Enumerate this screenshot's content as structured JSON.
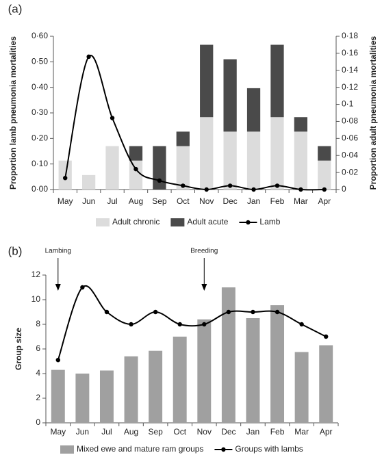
{
  "chart_data": [
    {
      "type": "bar",
      "panel_label": "(a)",
      "y_label": "Proportion lamb pneumonia mortalities",
      "y2_label": "Proportion adult pneumonia mortalities",
      "categories": [
        "May",
        "Jun",
        "Jul",
        "Aug",
        "Sep",
        "Oct",
        "Nov",
        "Dec",
        "Jan",
        "Feb",
        "Mar",
        "Apr"
      ],
      "stacked": true,
      "series": [
        {
          "name": "Adult chronic",
          "color": "#dcdcdc",
          "axis": "y2",
          "values": [
            0.034,
            0.017,
            0.051,
            0.034,
            0,
            0.051,
            0.085,
            0.068,
            0.068,
            0.085,
            0.068,
            0.034
          ]
        },
        {
          "name": "Adult acute",
          "color": "#4a4a4a",
          "axis": "y2",
          "values": [
            0,
            0,
            0,
            0.017,
            0.051,
            0.017,
            0.085,
            0.085,
            0.051,
            0.085,
            0.017,
            0.017
          ]
        },
        {
          "name": "Lamb",
          "type": "line",
          "color": "#000000",
          "axis": "y",
          "values": [
            0.045,
            0.52,
            0.28,
            0.08,
            0.035,
            0.015,
            0,
            0.015,
            0,
            0.015,
            0,
            0
          ]
        }
      ],
      "ylim": [
        0,
        0.6
      ],
      "yticks": [
        {
          "value": 0,
          "label": "0·00"
        },
        {
          "value": 0.1,
          "label": "0·10"
        },
        {
          "value": 0.2,
          "label": "0·20"
        },
        {
          "value": 0.3,
          "label": "0·30"
        },
        {
          "value": 0.4,
          "label": "0·40"
        },
        {
          "value": 0.5,
          "label": "0·50"
        },
        {
          "value": 0.6,
          "label": "0·60"
        }
      ],
      "y2lim": [
        0,
        0.18
      ],
      "y2ticks": [
        0,
        {
          "value": 0.02,
          "label": "0·02"
        },
        {
          "value": 0.04,
          "label": "0·04"
        },
        {
          "value": 0.06,
          "label": "0·06"
        },
        {
          "value": 0.08,
          "label": "0·08"
        },
        {
          "value": 0.1,
          "label": "0·1"
        },
        {
          "value": 0.12,
          "label": "0·12"
        },
        {
          "value": 0.14,
          "label": "0·14"
        },
        {
          "value": 0.16,
          "label": "0·16"
        },
        {
          "value": 0.18,
          "label": "0·18"
        }
      ],
      "legend": "bottom"
    },
    {
      "type": "bar",
      "panel_label": "(b)",
      "y_label": "Group size",
      "categories": [
        "May",
        "Jun",
        "Jul",
        "Aug",
        "Sep",
        "Oct",
        "Nov",
        "Dec",
        "Jan",
        "Feb",
        "Mar",
        "Apr"
      ],
      "series": [
        {
          "name": "Mixed ewe and mature ram groups",
          "color": "#a0a0a0",
          "values": [
            4.3,
            4.0,
            4.25,
            5.4,
            5.85,
            7.0,
            8.4,
            11.0,
            8.5,
            9.55,
            5.75,
            6.3
          ]
        },
        {
          "name": "Groups with lambs",
          "type": "line",
          "color": "#000000",
          "values": [
            5.1,
            11,
            9,
            8,
            9,
            8,
            8,
            9,
            9,
            9,
            8,
            7
          ]
        }
      ],
      "ylim": [
        0,
        12
      ],
      "yticks": [
        0,
        2,
        4,
        6,
        8,
        10,
        12
      ],
      "annotations": [
        {
          "text": "Lambing",
          "at": "May"
        },
        {
          "text": "Breeding",
          "at": "Nov"
        }
      ],
      "legend": "bottom"
    }
  ]
}
